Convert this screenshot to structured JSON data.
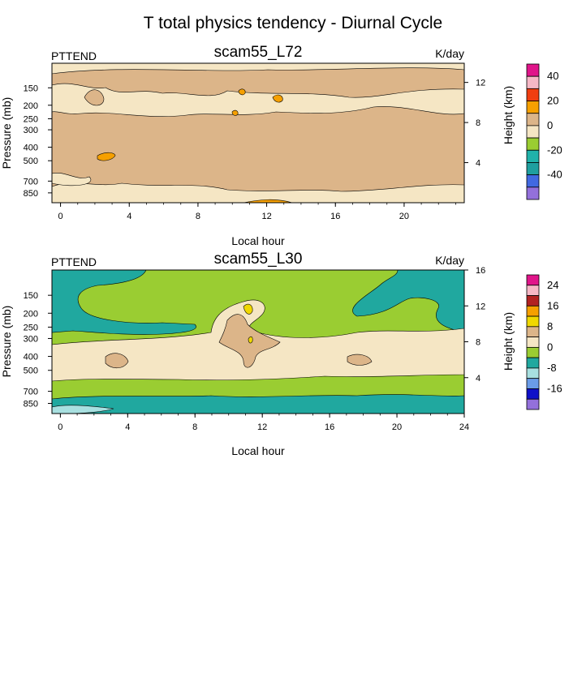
{
  "figure": {
    "title": "T total physics tendency - Diurnal Cycle"
  },
  "chart_data": [
    {
      "type": "heatmap",
      "variable_label": "PTTEND",
      "case_name": "scam55_L72",
      "units_label": "K/day",
      "xlabel": "Local hour",
      "ylabel": "Pressure (mb)",
      "ylabel_right": "Height (km)",
      "xlim": [
        -0.5,
        23.5
      ],
      "x_ticks": [
        "0",
        "4",
        "8",
        "12",
        "16",
        "20"
      ],
      "x_tick_values": [
        0,
        4,
        8,
        12,
        16,
        20
      ],
      "ylim_pressure": [
        100,
        1000
      ],
      "y_ticks": [
        "150",
        "200",
        "250",
        "300",
        "400",
        "500",
        "700",
        "850"
      ],
      "y_tick_values": [
        150,
        200,
        250,
        300,
        400,
        500,
        700,
        850
      ],
      "y_right_ticks": [
        "4",
        "8",
        "12"
      ],
      "y_right_tick_values": [
        4,
        8,
        12
      ],
      "colorbar": {
        "colors": [
          "#E0158A",
          "#F6B8C6",
          "#F03E10",
          "#F6A000",
          "#DCB589",
          "#F5E6C4",
          "#9ACD32",
          "#20B2AA",
          "#1F9F9F",
          "#4169E1",
          "#9370DB"
        ],
        "labels": [
          "40",
          "20",
          "0",
          "-20",
          "-40"
        ]
      },
      "fill_colors": {
        "warm": "#DCB589",
        "neutral": "#F5E6C4",
        "strong": "#F6A000",
        "hot": "#F03E10"
      }
    },
    {
      "type": "heatmap",
      "variable_label": "PTTEND",
      "case_name": "scam55_L30",
      "units_label": "K/day",
      "xlabel": "Local hour",
      "ylabel": "Pressure (mb)",
      "ylabel_right": "Height (km)",
      "xlim": [
        -0.5,
        24
      ],
      "x_ticks": [
        "0",
        "4",
        "8",
        "12",
        "16",
        "20",
        "24"
      ],
      "x_tick_values": [
        0,
        4,
        8,
        12,
        16,
        20,
        24
      ],
      "ylim_pressure": [
        100,
        1000
      ],
      "y_ticks": [
        "150",
        "200",
        "250",
        "300",
        "400",
        "500",
        "700",
        "850"
      ],
      "y_tick_values": [
        150,
        200,
        250,
        300,
        400,
        500,
        700,
        850
      ],
      "y_right_ticks": [
        "4",
        "8",
        "12",
        "16"
      ],
      "y_right_tick_values": [
        4,
        8,
        12,
        16
      ],
      "colorbar": {
        "colors": [
          "#E0158A",
          "#F6B8C6",
          "#B22222",
          "#F6A000",
          "#F0D800",
          "#DCB589",
          "#F5E6C4",
          "#9ACD32",
          "#20A89F",
          "#A8E0E0",
          "#6A9CE8",
          "#1010C8",
          "#9370DB"
        ],
        "labels": [
          "24",
          "16",
          "8",
          "0",
          "-8",
          "-16"
        ]
      },
      "fill_colors": {
        "cool": "#20A89F",
        "green": "#9ACD32",
        "neutral": "#F5E6C4",
        "warm": "#DCB589",
        "yellow": "#F0D800",
        "orange": "#F6A000",
        "light": "#A8E0E0"
      }
    }
  ]
}
